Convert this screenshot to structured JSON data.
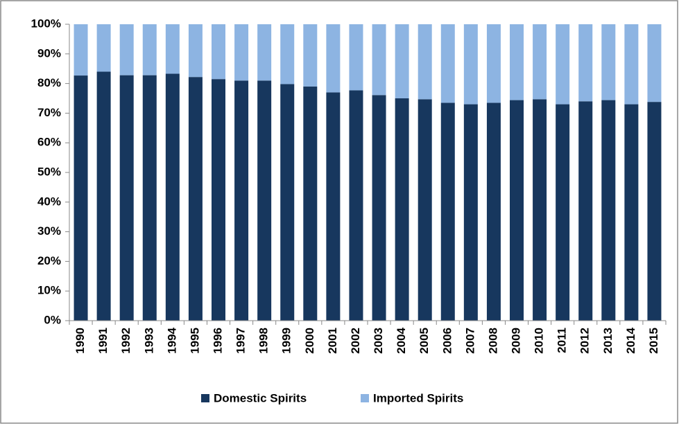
{
  "chart_data": {
    "type": "stacked_bar",
    "categories": [
      "1990",
      "1991",
      "1992",
      "1993",
      "1994",
      "1995",
      "1996",
      "1997",
      "1998",
      "1999",
      "2000",
      "2001",
      "2002",
      "2003",
      "2004",
      "2005",
      "2006",
      "2007",
      "2008",
      "2009",
      "2010",
      "2011",
      "2012",
      "2013",
      "2014",
      "2015"
    ],
    "series": [
      {
        "name": "Domestic Spirits",
        "color": "#17375e",
        "values": [
          82.7,
          84,
          82.8,
          82.8,
          83.3,
          82.2,
          81.5,
          81,
          81,
          79.8,
          79,
          77,
          77.7,
          76.1,
          75,
          74.7,
          73.5,
          73,
          73.5,
          74.4,
          74.7,
          73,
          74,
          74.4,
          73,
          73.8
        ]
      },
      {
        "name": "Imported Spirits",
        "color": "#8db4e2",
        "values": [
          17.3,
          16,
          17.2,
          17.2,
          16.7,
          17.8,
          18.5,
          19,
          19,
          20.2,
          21,
          23,
          22.3,
          23.9,
          25,
          25.3,
          26.5,
          27,
          26.5,
          25.6,
          25.3,
          27,
          26,
          25.6,
          27,
          26.2
        ]
      }
    ],
    "ylim": [
      0,
      100
    ],
    "yticks": [
      {
        "value": 0,
        "label": "0%"
      },
      {
        "value": 10,
        "label": "10%"
      },
      {
        "value": 20,
        "label": "20%"
      },
      {
        "value": 30,
        "label": "30%"
      },
      {
        "value": 40,
        "label": "40%"
      },
      {
        "value": 50,
        "label": "50%"
      },
      {
        "value": 60,
        "label": "60%"
      },
      {
        "value": 70,
        "label": "70%"
      },
      {
        "value": 80,
        "label": "80%"
      },
      {
        "value": 90,
        "label": "90%"
      },
      {
        "value": 100,
        "label": "100%"
      }
    ],
    "legend": "bottom"
  }
}
